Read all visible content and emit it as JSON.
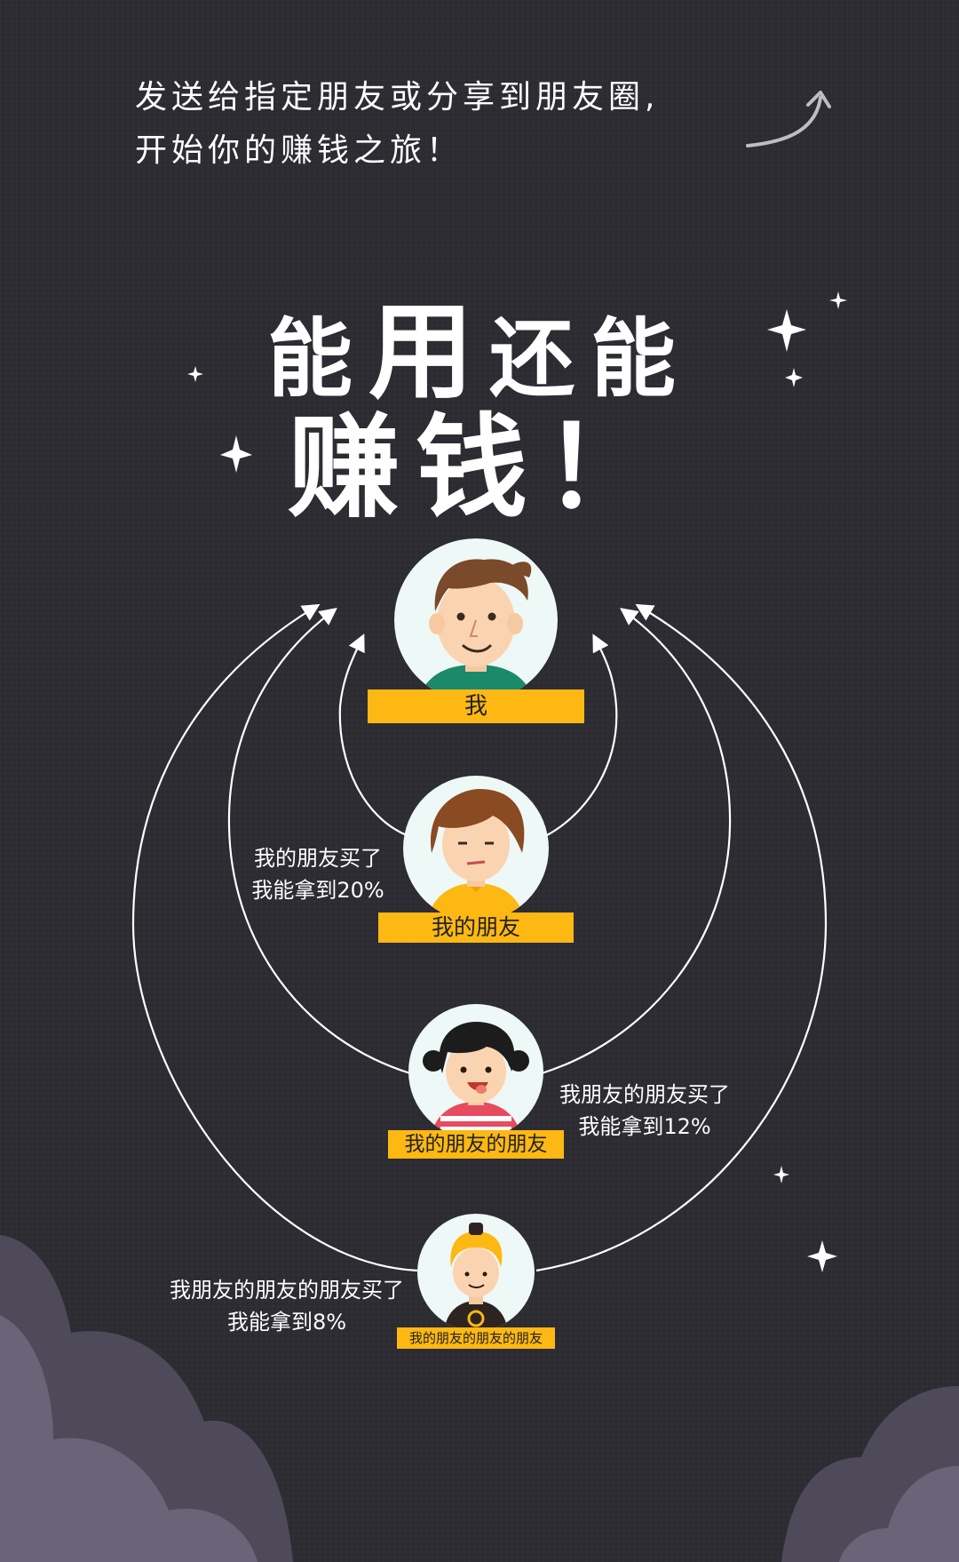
{
  "intro": {
    "line1": "发送给指定朋友或分享到朋友圈,",
    "line2": "开始你的赚钱之旅！"
  },
  "headline": {
    "part1": "能",
    "part2": "用",
    "part3": "还能",
    "line2": "赚钱！"
  },
  "levels": [
    {
      "tag": "我",
      "note_line1": "",
      "note_line2": ""
    },
    {
      "tag": "我的朋友",
      "note_line1": "我的朋友买了",
      "note_line2": "我能拿到20%"
    },
    {
      "tag": "我的朋友的朋友",
      "note_line1": "我朋友的朋友买了",
      "note_line2": "我能拿到12%"
    },
    {
      "tag": "我的朋友的朋友的朋友",
      "note_line1": "我朋友的朋友的朋友买了",
      "note_line2": "我能拿到8%"
    }
  ],
  "commission_percent": [
    20,
    12,
    8
  ],
  "colors": {
    "background": "#2b2b31",
    "tag": "#fdb813",
    "avatar_bg": "#eef8f6",
    "cloud": "#6a6478"
  },
  "icons": [
    "curved-arrow-icon",
    "sparkle-star-icon"
  ]
}
